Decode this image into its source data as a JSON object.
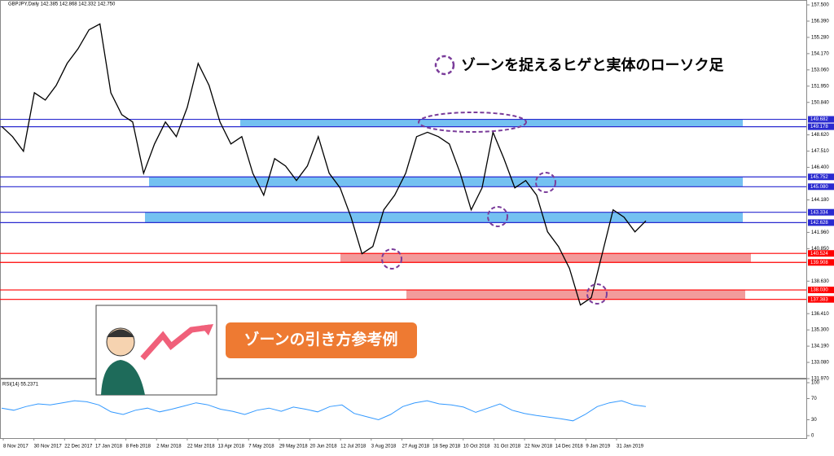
{
  "chart_data": {
    "type": "line",
    "header": "GBPJPY,Daily 142.385 142.868 142.332 142.750",
    "annotation": "ゾーンを捉えるヒゲと実体のローソク足",
    "button_label": "ゾーンの引き方参考例",
    "x_labels": [
      "8 Nov 2017",
      "30 Nov 2017",
      "22 Dec 2017",
      "17 Jan 2018",
      "8 Feb 2018",
      "2 Mar 2018",
      "22 Mar 2018",
      "13 Apr 2018",
      "7 May 2018",
      "29 May 2018",
      "20 Jun 2018",
      "12 Jul 2018",
      "3 Aug 2018",
      "27 Aug 2018",
      "18 Sep 2018",
      "10 Oct 2018",
      "31 Oct 2018",
      "22 Nov 2018",
      "14 Dec 2018",
      "9 Jan 2019",
      "31 Jan 2019"
    ],
    "series": [
      {
        "name": "GBPJPY",
        "color": "#000000",
        "values": [
          149.2,
          148.5,
          147.5,
          151.5,
          151.0,
          152.0,
          153.5,
          154.5,
          155.8,
          156.2,
          151.5,
          150.0,
          149.5,
          146.0,
          148.0,
          149.5,
          148.5,
          150.5,
          153.5,
          152.0,
          149.5,
          148.0,
          148.5,
          146.0,
          144.5,
          147.0,
          146.5,
          145.5,
          146.5,
          148.5,
          146.0,
          145.0,
          143.0,
          140.5,
          141.0,
          143.5,
          144.5,
          146.0,
          148.5,
          148.8,
          148.5,
          148.0,
          146.0,
          143.5,
          145.0,
          148.8,
          147.0,
          145.0,
          145.5,
          144.5,
          142.0,
          141.0,
          139.5,
          137.0,
          137.5,
          140.5,
          143.5,
          143.0,
          142.0,
          142.75
        ]
      }
    ],
    "ylim": [
      131.97,
      157.5
    ],
    "yticks": [
      {
        "value": 157.5,
        "label": "157.500"
      },
      {
        "value": 156.39,
        "label": "156.390"
      },
      {
        "value": 155.28,
        "label": "155.280"
      },
      {
        "value": 154.17,
        "label": "154.170"
      },
      {
        "value": 153.06,
        "label": "153.060"
      },
      {
        "value": 151.95,
        "label": "151.950"
      },
      {
        "value": 150.84,
        "label": "150.840"
      },
      {
        "value": 148.62,
        "label": "148.620"
      },
      {
        "value": 147.51,
        "label": "147.510"
      },
      {
        "value": 146.4,
        "label": "146.400"
      },
      {
        "value": 144.18,
        "label": "144.180"
      },
      {
        "value": 141.96,
        "label": "141.960"
      },
      {
        "value": 140.85,
        "label": "140.850"
      },
      {
        "value": 138.63,
        "label": "138.630"
      },
      {
        "value": 136.41,
        "label": "136.410"
      },
      {
        "value": 135.3,
        "label": "135.300"
      },
      {
        "value": 134.19,
        "label": "134.190"
      },
      {
        "value": 133.08,
        "label": "133.080"
      },
      {
        "value": 131.97,
        "label": "131.970"
      }
    ],
    "zones": [
      {
        "color": "#2a2ad0",
        "fill": "#5cb6ee",
        "top": 149.682,
        "bottom": 149.178
      },
      {
        "color": "#2a2ad0",
        "fill": "#5cb6ee",
        "top": 145.752,
        "bottom": {
          "value": 145.08,
          "label": "145.080"
        }
      },
      {
        "color": "#2a2ad0",
        "fill": "#5cb6ee",
        "top": 143.334,
        "bottom": 142.628
      },
      {
        "color": "#ff0000",
        "fill": "#f08a8a",
        "top": 140.524,
        "bottom": {
          "value": 139.908,
          "label": "139.908"
        }
      },
      {
        "color": "#ff0000",
        "fill": "#f08a8a",
        "top": {
          "value": 138.03,
          "label": "138.030"
        },
        "bottom": 137.383
      }
    ],
    "rsi": {
      "label": "RSI(14) 55.2371",
      "color": "#3399ff",
      "ylim": [
        0,
        100
      ],
      "yticks": [
        100,
        70,
        30,
        0
      ],
      "values": [
        52,
        48,
        55,
        60,
        58,
        62,
        66,
        64,
        58,
        45,
        40,
        48,
        52,
        45,
        50,
        56,
        62,
        58,
        50,
        46,
        40,
        48,
        52,
        46,
        54,
        50,
        45,
        55,
        58,
        42,
        36,
        30,
        40,
        55,
        62,
        66,
        60,
        58,
        54,
        44,
        52,
        60,
        48,
        42,
        38,
        35,
        32,
        28,
        40,
        55,
        62,
        66,
        58,
        55
      ]
    }
  }
}
